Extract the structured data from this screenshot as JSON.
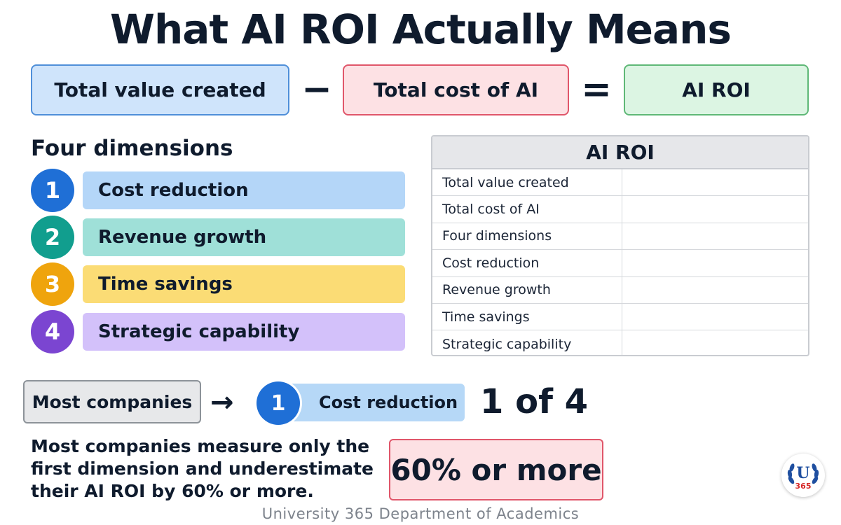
{
  "title": "What AI ROI Actually Means",
  "equation": {
    "term1": "Total value created",
    "operator1": "−",
    "term2": "Total cost of AI",
    "operator2": "=",
    "result": "AI ROI"
  },
  "dimensions": {
    "heading": "Four dimensions",
    "items": [
      {
        "number": "1",
        "label": "Cost reduction",
        "circle_color": "#1f6fd6",
        "bar_color": "#b4d6f8"
      },
      {
        "number": "2",
        "label": "Revenue growth",
        "circle_color": "#119e8e",
        "bar_color": "#9fe0d8"
      },
      {
        "number": "3",
        "label": "Time savings",
        "circle_color": "#efa40d",
        "bar_color": "#fbdc75"
      },
      {
        "number": "4",
        "label": "Strategic capability",
        "circle_color": "#7b45d1",
        "bar_color": "#d3c1fa"
      }
    ]
  },
  "table": {
    "header": "AI ROI",
    "rows": [
      "Total value created",
      "Total cost of AI",
      "Four dimensions",
      "Cost reduction",
      "Revenue growth",
      "Time savings",
      "Strategic capability"
    ]
  },
  "flow": {
    "source": "Most companies",
    "arrow": "→",
    "pill_number": "1",
    "pill_label": "Cost reduction",
    "fraction": "1 of 4"
  },
  "statement": "Most companies measure only the first dimension and underestimate their AI ROI by 60% or more.",
  "highlight": "60% or more",
  "footer": "University 365 Department of Academics",
  "logo": {
    "letter": "U",
    "number": "365"
  },
  "colors": {
    "value_box": "#cfe4fb",
    "value_border": "#4f8fd9",
    "cost_box": "#fde1e4",
    "cost_border": "#e0566a",
    "roi_box": "#dcf5e3",
    "roi_border": "#5fb877",
    "text": "#0f1b2d"
  }
}
